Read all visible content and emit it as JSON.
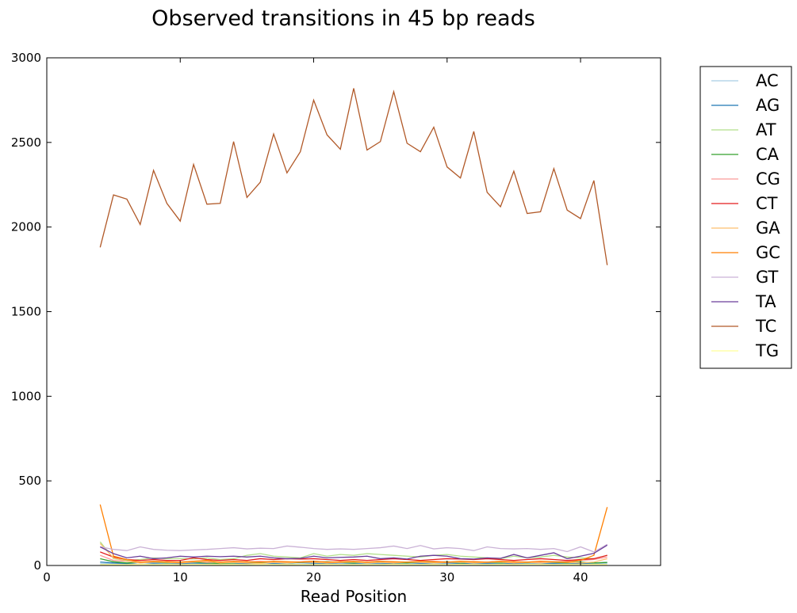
{
  "chart_data": {
    "type": "line",
    "title": "Observed transitions in 45 bp reads",
    "xlabel": "Read Position",
    "ylabel": "",
    "xlim": [
      0,
      46
    ],
    "ylim": [
      0,
      3000
    ],
    "xticks": [
      0,
      10,
      20,
      30,
      40
    ],
    "yticks": [
      0,
      500,
      1000,
      1500,
      2000,
      2500,
      3000
    ],
    "grid": false,
    "legend_position": "outside-right",
    "x": [
      4,
      5,
      6,
      7,
      8,
      9,
      10,
      11,
      12,
      13,
      14,
      15,
      16,
      17,
      18,
      19,
      20,
      21,
      22,
      23,
      24,
      25,
      26,
      27,
      28,
      29,
      30,
      31,
      32,
      33,
      34,
      35,
      36,
      37,
      38,
      39,
      40,
      41,
      42
    ],
    "series": [
      {
        "name": "AC",
        "color": "#a6cee3",
        "values": [
          10,
          12,
          10,
          8,
          9,
          12,
          10,
          11,
          8,
          10,
          12,
          9,
          10,
          11,
          9,
          10,
          12,
          10,
          9,
          11,
          10,
          9,
          12,
          10,
          11,
          9,
          10,
          12,
          9,
          10,
          11,
          10,
          9,
          12,
          10,
          9,
          10,
          11,
          12
        ]
      },
      {
        "name": "AG",
        "color": "#1f78b4",
        "values": [
          20,
          15,
          12,
          18,
          14,
          16,
          12,
          15,
          13,
          17,
          14,
          12,
          16,
          13,
          15,
          18,
          14,
          12,
          16,
          13,
          15,
          14,
          12,
          17,
          13,
          15,
          16,
          12,
          14,
          13,
          15,
          12,
          16,
          14,
          13,
          15,
          12,
          14,
          18
        ]
      },
      {
        "name": "AT",
        "color": "#b2df8a",
        "values": [
          140,
          40,
          30,
          35,
          45,
          40,
          42,
          38,
          45,
          35,
          40,
          60,
          70,
          55,
          50,
          45,
          70,
          55,
          65,
          60,
          70,
          65,
          60,
          55,
          50,
          60,
          65,
          55,
          50,
          45,
          40,
          55,
          45,
          50,
          60,
          50,
          45,
          40,
          60
        ]
      },
      {
        "name": "CA",
        "color": "#33a02c",
        "values": [
          40,
          22,
          15,
          18,
          20,
          15,
          18,
          20,
          15,
          12,
          15,
          18,
          16,
          20,
          15,
          18,
          20,
          22,
          18,
          15,
          20,
          18,
          16,
          15,
          20,
          18,
          22,
          15,
          18,
          20,
          15,
          18,
          16,
          20,
          18,
          15,
          20,
          15,
          18
        ]
      },
      {
        "name": "CG",
        "color": "#fb9a99",
        "values": [
          60,
          30,
          25,
          20,
          25,
          22,
          20,
          25,
          18,
          20,
          22,
          20,
          25,
          18,
          20,
          22,
          25,
          20,
          18,
          22,
          20,
          25,
          18,
          20,
          22,
          25,
          20,
          18,
          22,
          20,
          25,
          18,
          20,
          22,
          20,
          25,
          30,
          35,
          50
        ]
      },
      {
        "name": "CT",
        "color": "#e31a1c",
        "values": [
          80,
          50,
          35,
          30,
          35,
          30,
          30,
          45,
          35,
          30,
          35,
          30,
          40,
          35,
          40,
          38,
          40,
          35,
          30,
          35,
          30,
          35,
          40,
          35,
          30,
          35,
          40,
          38,
          35,
          40,
          35,
          30,
          35,
          40,
          35,
          30,
          35,
          40,
          60
        ]
      },
      {
        "name": "GA",
        "color": "#fdbf6f",
        "values": [
          130,
          45,
          25,
          15,
          20,
          18,
          15,
          20,
          25,
          15,
          18,
          15,
          12,
          18,
          15,
          20,
          18,
          15,
          18,
          20,
          15,
          18,
          15,
          20,
          18,
          15,
          18,
          20,
          15,
          18,
          20,
          15,
          18,
          15,
          20,
          18,
          15,
          20,
          40
        ]
      },
      {
        "name": "GC",
        "color": "#ff7f00",
        "values": [
          360,
          55,
          35,
          20,
          25,
          22,
          20,
          25,
          30,
          20,
          25,
          22,
          20,
          25,
          22,
          20,
          25,
          20,
          22,
          25,
          20,
          25,
          22,
          20,
          25,
          22,
          20,
          25,
          22,
          20,
          25,
          22,
          20,
          25,
          22,
          20,
          30,
          60,
          345
        ]
      },
      {
        "name": "GT",
        "color": "#cab2d6",
        "values": [
          110,
          95,
          88,
          110,
          95,
          90,
          88,
          92,
          95,
          100,
          105,
          98,
          102,
          100,
          115,
          108,
          100,
          95,
          98,
          95,
          100,
          105,
          115,
          100,
          118,
          98,
          105,
          100,
          88,
          110,
          100,
          98,
          100,
          95,
          100,
          82,
          110,
          80,
          125
        ]
      },
      {
        "name": "TA",
        "color": "#6a3d9a",
        "values": [
          110,
          70,
          45,
          55,
          40,
          45,
          55,
          50,
          55,
          52,
          55,
          50,
          55,
          45,
          40,
          42,
          55,
          45,
          48,
          50,
          55,
          40,
          45,
          38,
          55,
          60,
          55,
          40,
          38,
          45,
          42,
          65,
          45,
          60,
          75,
          40,
          55,
          72,
          120
        ]
      },
      {
        "name": "TC",
        "color": "#b15928",
        "values": [
          1880,
          2190,
          2165,
          2015,
          2335,
          2140,
          2035,
          2370,
          2135,
          2140,
          2505,
          2175,
          2265,
          2550,
          2320,
          2445,
          2750,
          2545,
          2460,
          2820,
          2455,
          2505,
          2800,
          2495,
          2445,
          2590,
          2355,
          2290,
          2565,
          2205,
          2120,
          2330,
          2080,
          2090,
          2345,
          2100,
          2050,
          2275,
          1775
        ]
      },
      {
        "name": "TG",
        "color": "#ffff99",
        "values": [
          5,
          6,
          5,
          7,
          5,
          6,
          5,
          7,
          6,
          5,
          6,
          5,
          7,
          6,
          5,
          6,
          5,
          7,
          6,
          5,
          6,
          5,
          7,
          6,
          5,
          6,
          5,
          7,
          6,
          5,
          6,
          5,
          7,
          6,
          5,
          6,
          5,
          7,
          6
        ]
      }
    ]
  }
}
